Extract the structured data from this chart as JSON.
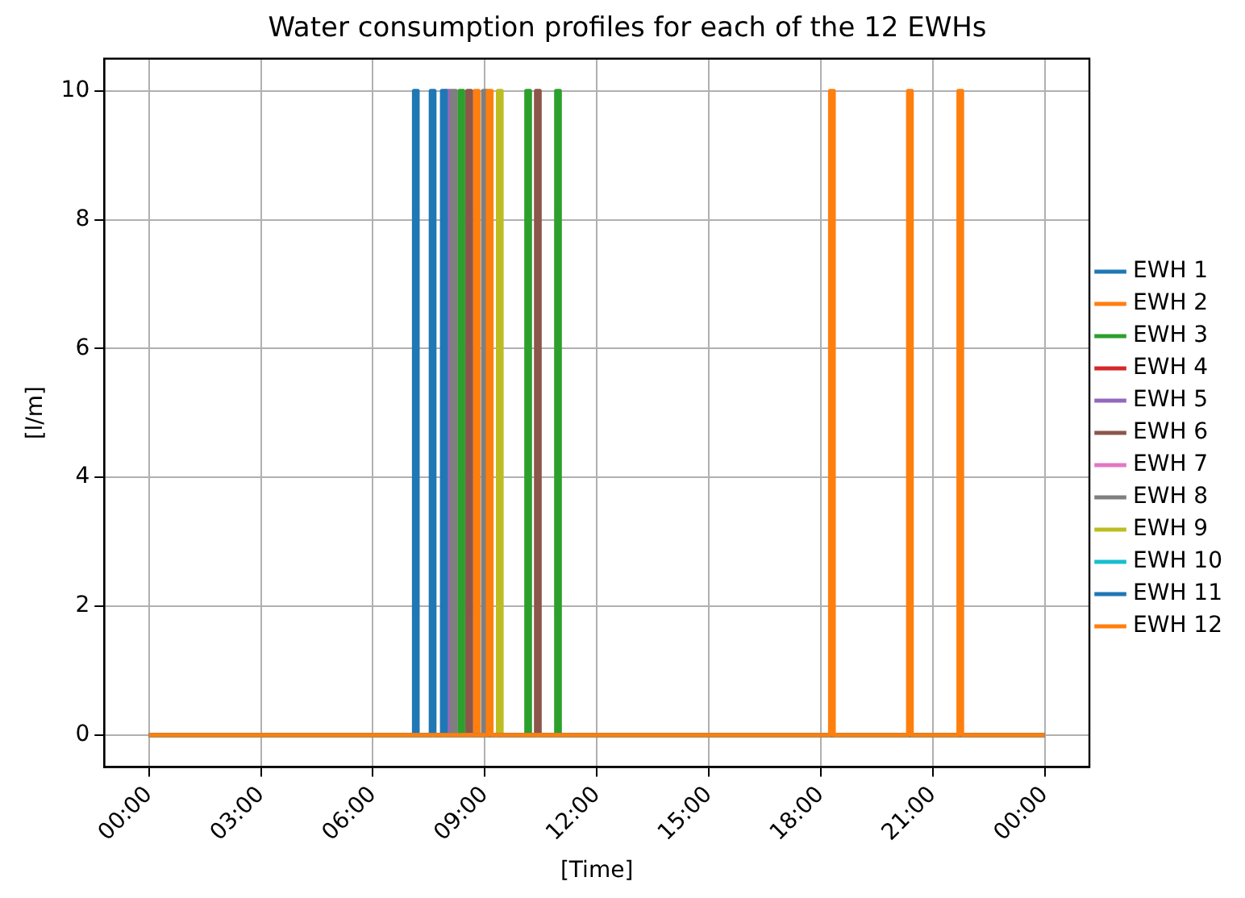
{
  "chart_data": {
    "type": "line",
    "title": "Water consumption profiles for each of the 12 EWHs",
    "xlabel": "[Time]",
    "ylabel": "[l/m]",
    "xlim": [
      -1.2,
      25.2
    ],
    "ylim": [
      -0.5,
      10.5
    ],
    "xticks": [
      {
        "value": 0,
        "label": "00:00"
      },
      {
        "value": 3,
        "label": "03:00"
      },
      {
        "value": 6,
        "label": "06:00"
      },
      {
        "value": 9,
        "label": "09:00"
      },
      {
        "value": 12,
        "label": "12:00"
      },
      {
        "value": 15,
        "label": "15:00"
      },
      {
        "value": 18,
        "label": "18:00"
      },
      {
        "value": 21,
        "label": "21:00"
      },
      {
        "value": 24,
        "label": "00:00"
      }
    ],
    "yticks": [
      0,
      2,
      4,
      6,
      8,
      10
    ],
    "grid": true,
    "legend": "right",
    "marker": "none",
    "line_style": "solid",
    "series": [
      {
        "name": "EWH 1",
        "color": "#1f77b4",
        "x": [
          0,
          7.1,
          7.1,
          7.2,
          7.2,
          24
        ],
        "values": [
          0,
          0,
          10,
          10,
          0,
          0
        ]
      },
      {
        "name": "EWH 2",
        "color": "#ff7f0e",
        "x": [
          0,
          8.73,
          8.73,
          8.83,
          8.83,
          24
        ],
        "values": [
          0,
          0,
          10,
          10,
          0,
          0
        ]
      },
      {
        "name": "EWH 3",
        "color": "#2ca02c",
        "x": [
          0,
          8.32,
          8.32,
          8.42,
          8.42,
          10.11,
          10.11,
          10.21,
          10.21,
          10.91,
          10.91,
          11.01,
          11.01,
          24
        ],
        "values": [
          0,
          0,
          10,
          10,
          0,
          0,
          10,
          10,
          0,
          0,
          10,
          10,
          0,
          0
        ]
      },
      {
        "name": "EWH 4",
        "color": "#d62728"
      },
      {
        "name": "EWH 5",
        "color": "#9467bd",
        "x": [
          0,
          7.97,
          7.97,
          8.07,
          8.07,
          24
        ],
        "values": [
          0,
          0,
          10,
          10,
          0,
          0
        ]
      },
      {
        "name": "EWH 6",
        "color": "#8c564b",
        "x": [
          0,
          8.53,
          8.53,
          8.63,
          8.63,
          10.37,
          10.37,
          10.47,
          10.47,
          24
        ],
        "values": [
          0,
          0,
          10,
          10,
          0,
          0,
          10,
          10,
          0,
          0
        ]
      },
      {
        "name": "EWH 7",
        "color": "#e377c2"
      },
      {
        "name": "EWH 8",
        "color": "#7f7f7f",
        "x": [
          0,
          8.12,
          8.12,
          8.22,
          8.22,
          8.95,
          8.95,
          9.05,
          9.05,
          24
        ],
        "values": [
          0,
          0,
          10,
          10,
          0,
          0,
          10,
          10,
          0,
          0
        ]
      },
      {
        "name": "EWH 9",
        "color": "#bcbd22",
        "x": [
          0,
          9.35,
          9.35,
          9.45,
          9.45,
          24
        ],
        "values": [
          0,
          0,
          10,
          10,
          0,
          0
        ]
      },
      {
        "name": "EWH 10",
        "color": "#17becf"
      },
      {
        "name": "EWH 11",
        "color": "#1f77b4",
        "x": [
          0,
          7.55,
          7.55,
          7.65,
          7.65,
          7.85,
          7.85,
          7.95,
          7.95,
          24
        ],
        "values": [
          0,
          0,
          10,
          10,
          0,
          0,
          10,
          10,
          0,
          0
        ]
      },
      {
        "name": "EWH 12",
        "color": "#ff7f0e",
        "x": [
          0,
          9.08,
          9.08,
          9.18,
          9.18,
          18.25,
          18.25,
          18.35,
          18.35,
          20.34,
          20.34,
          20.44,
          20.44,
          21.69,
          21.69,
          21.79,
          21.79,
          24
        ],
        "values": [
          0,
          0,
          10,
          10,
          0,
          0,
          10,
          10,
          0,
          0,
          10,
          10,
          0,
          0,
          10,
          10,
          0,
          0
        ]
      }
    ]
  }
}
